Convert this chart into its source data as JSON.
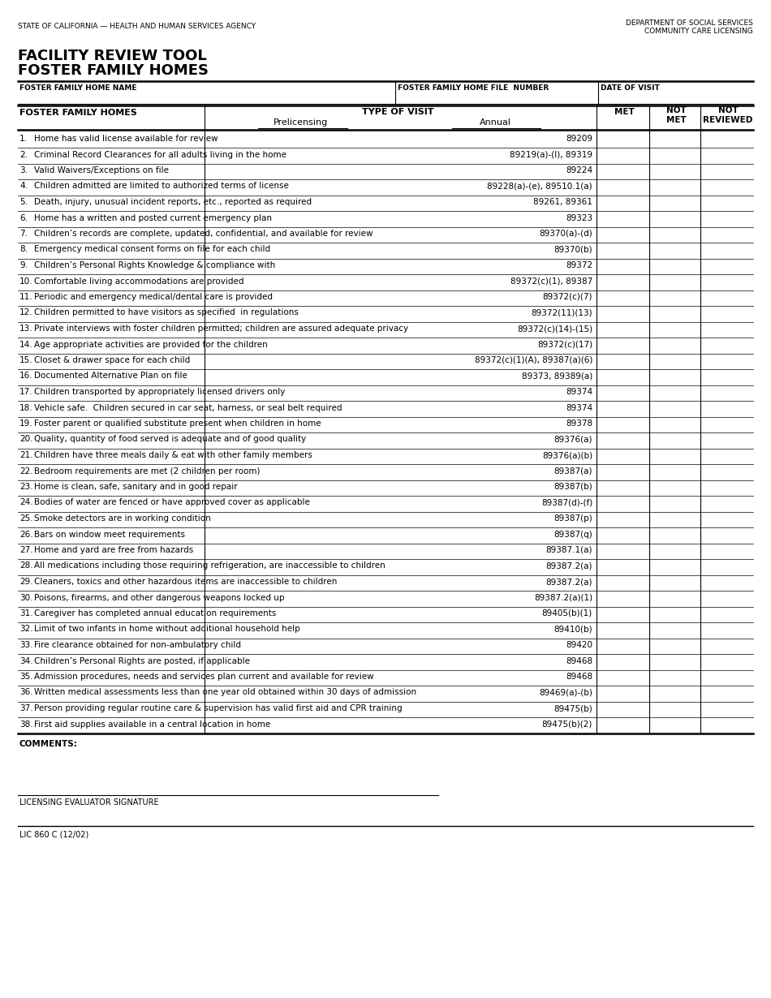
{
  "top_left_text": "STATE OF CALIFORNIA — HEALTH AND HUMAN SERVICES AGENCY",
  "top_right_line1": "DEPARTMENT OF SOCIAL SERVICES",
  "top_right_line2": "COMMUNITY CARE LICENSING",
  "title_line1": "FACILITY REVIEW TOOL",
  "title_line2": "FOSTER FAMILY HOMES",
  "field1_label": "FOSTER FAMILY HOME NAME",
  "field2_label": "FOSTER FAMILY HOME FILE  NUMBER",
  "field3_label": "DATE OF VISIT",
  "header_col1": "FOSTER FAMILY HOMES",
  "header_type_visit": "TYPE OF VISIT",
  "header_prelicensing": "Prelicensing",
  "header_annual": "Annual",
  "header_met": "MET",
  "header_not_met": "NOT\nMET",
  "header_not_reviewed": "NOT\nREVIEWED",
  "rows": [
    {
      "num": "1.",
      "text": "Home has valid license available for review",
      "code": "89209"
    },
    {
      "num": "2.",
      "text": "Criminal Record Clearances for all adults living in the home",
      "code": "89219(a)-(l), 89319"
    },
    {
      "num": "3.",
      "text": "Valid Waivers/Exceptions on file",
      "code": "89224"
    },
    {
      "num": "4.",
      "text": "Children admitted are limited to authorized terms of license",
      "code": "89228(a)-(e), 89510.1(a)"
    },
    {
      "num": "5.",
      "text": "Death, injury, unusual incident reports, etc., reported as required",
      "code": "89261, 89361"
    },
    {
      "num": "6.",
      "text": "Home has a written and posted current emergency plan",
      "code": "89323"
    },
    {
      "num": "7.",
      "text": "Children’s records are complete, updated, confidential, and available for review",
      "code": "89370(a)-(d)"
    },
    {
      "num": "8.",
      "text": "Emergency medical consent forms on file for each child",
      "code": "89370(b)"
    },
    {
      "num": "9.",
      "text": "Children’s Personal Rights Knowledge & compliance with",
      "code": "89372"
    },
    {
      "num": "10.",
      "text": "Comfortable living accommodations are provided",
      "code": "89372(c)(1), 89387"
    },
    {
      "num": "11.",
      "text": "Periodic and emergency medical/dental care is provided",
      "code": "89372(c)(7)"
    },
    {
      "num": "12.",
      "text": "Children permitted to have visitors as specified  in regulations",
      "code": "89372(11)(13)"
    },
    {
      "num": "13.",
      "text": "Private interviews with foster children permitted; children are assured adequate privacy",
      "code": "89372(c)(14)-(15)"
    },
    {
      "num": "14.",
      "text": "Age appropriate activities are provided for the children",
      "code": "89372(c)(17)"
    },
    {
      "num": "15.",
      "text": "Closet & drawer space for each child",
      "code": "89372(c)(1)(A), 89387(a)(6)"
    },
    {
      "num": "16.",
      "text": "Documented Alternative Plan on file",
      "code": "89373, 89389(a)"
    },
    {
      "num": "17.",
      "text": "Children transported by appropriately licensed drivers only",
      "code": "89374"
    },
    {
      "num": "18.",
      "text": "Vehicle safe.  Children secured in car seat, harness, or seal belt required",
      "code": "89374"
    },
    {
      "num": "19.",
      "text": "Foster parent or qualified substitute present when children in home",
      "code": "89378"
    },
    {
      "num": "20.",
      "text": "Quality, quantity of food served is adequate and of good quality",
      "code": "89376(a)"
    },
    {
      "num": "21.",
      "text": "Children have three meals daily & eat with other family members",
      "code": "89376(a)(b)"
    },
    {
      "num": "22.",
      "text": "Bedroom requirements are met (2 children per room)",
      "code": "89387(a)"
    },
    {
      "num": "23.",
      "text": "Home is clean, safe, sanitary and in good repair",
      "code": "89387(b)"
    },
    {
      "num": "24.",
      "text": "Bodies of water are fenced or have approved cover as applicable",
      "code": "89387(d)-(f)"
    },
    {
      "num": "25.",
      "text": "Smoke detectors are in working condition",
      "code": "89387(p)"
    },
    {
      "num": "26.",
      "text": "Bars on window meet requirements",
      "code": "89387(q)"
    },
    {
      "num": "27.",
      "text": "Home and yard are free from hazards",
      "code": "89387.1(a)"
    },
    {
      "num": "28.",
      "text": "All medications including those requiring refrigeration, are inaccessible to children",
      "code": "89387.2(a)"
    },
    {
      "num": "29.",
      "text": "Cleaners, toxics and other hazardous items are inaccessible to children",
      "code": "89387.2(a)"
    },
    {
      "num": "30.",
      "text": "Poisons, firearms, and other dangerous weapons locked up",
      "code": "89387.2(a)(1)"
    },
    {
      "num": "31.",
      "text": "Caregiver has completed annual education requirements",
      "code": "89405(b)(1)"
    },
    {
      "num": "32.",
      "text": "Limit of two infants in home without additional household help",
      "code": "89410(b)"
    },
    {
      "num": "33.",
      "text": "Fire clearance obtained for non-ambulatory child",
      "code": "89420"
    },
    {
      "num": "34.",
      "text": "Children’s Personal Rights are posted, if applicable",
      "code": "89468"
    },
    {
      "num": "35.",
      "text": "Admission procedures, needs and services plan current and available for review",
      "code": "89468"
    },
    {
      "num": "36.",
      "text": "Written medical assessments less than one year old obtained within 30 days of admission",
      "code": "89469(a)-(b)"
    },
    {
      "num": "37.",
      "text": "Person providing regular routine care & supervision has valid first aid and CPR training",
      "code": "89475(b)"
    },
    {
      "num": "38.",
      "text": "First aid supplies available in a central location in home",
      "code": "89475(b)(2)"
    }
  ],
  "comments_label": "COMMENTS:",
  "signature_label": "LICENSING EVALUATOR SIGNATURE",
  "form_number": "LIC 860 C (12/02)",
  "background_color": "#ffffff"
}
